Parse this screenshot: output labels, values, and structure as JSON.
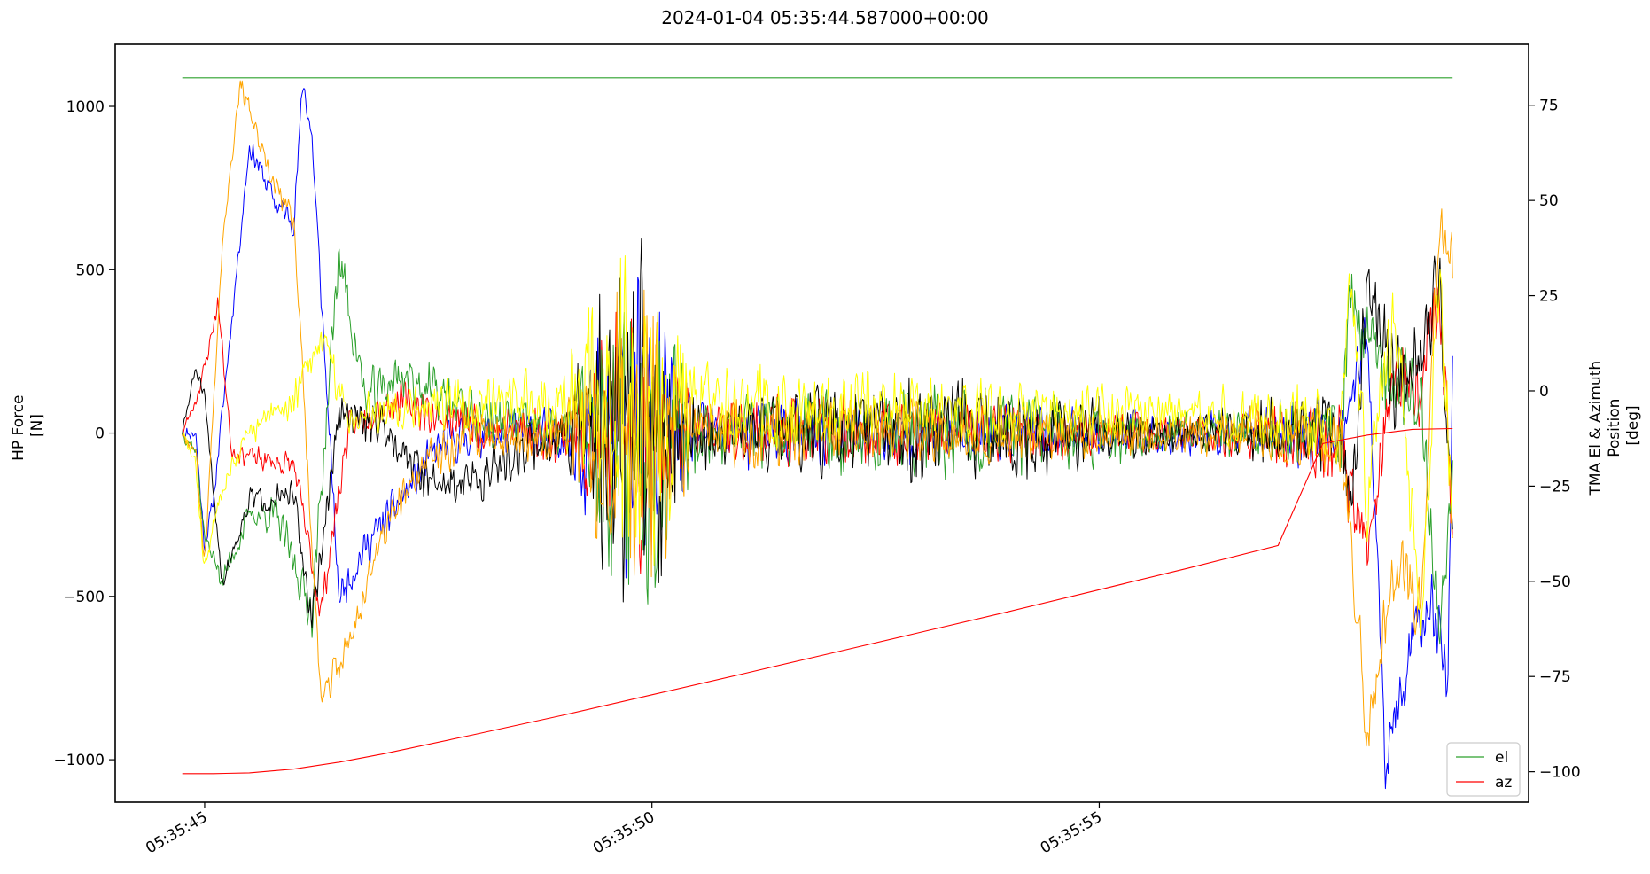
{
  "chart_data": {
    "type": "line",
    "title": "2024-01-04 05:35:44.587000+00:00",
    "left_axis": {
      "label_lines": [
        "HP Force",
        "[N]"
      ],
      "ylim": [
        -1130,
        1190
      ],
      "ticks": [
        -1000,
        -500,
        0,
        500,
        1000
      ],
      "tick_labels": [
        "−1000",
        "−500",
        "0",
        "500",
        "1000"
      ]
    },
    "right_axis": {
      "label_lines": [
        "TMA El & Azimuth",
        "Position",
        "[deg]"
      ],
      "ylim": [
        -108,
        91
      ],
      "ticks": [
        -100,
        -75,
        -50,
        -25,
        0,
        25,
        50,
        75
      ],
      "tick_labels": [
        "−100",
        "−75",
        "−50",
        "−25",
        "0",
        "25",
        "50",
        "75"
      ]
    },
    "x_axis": {
      "unit": "seconds after 05:35:44",
      "xlim": [
        0.0,
        15.8
      ],
      "ticks": [
        1.0,
        6.0,
        11.0
      ],
      "tick_labels": [
        "05:35:45",
        "05:35:50",
        "05:35:55"
      ]
    },
    "position_series": [
      {
        "name": "el",
        "color": "#2ca02c",
        "axis": "right",
        "x": [
          0.75,
          14.95
        ],
        "values": [
          82.2,
          82.2
        ]
      },
      {
        "name": "az",
        "color": "#ff0000",
        "axis": "right",
        "x": [
          0.75,
          1.1,
          1.5,
          2.0,
          2.5,
          3.0,
          4.0,
          5.0,
          6.0,
          7.0,
          8.0,
          9.0,
          10.0,
          11.0,
          12.0,
          13.0,
          13.5,
          14.0,
          14.5,
          14.95
        ],
        "values": [
          -100.5,
          -100.5,
          -100.3,
          -99.3,
          -97.5,
          -95.3,
          -90.3,
          -85.2,
          -79.8,
          -74.4,
          -68.9,
          -63.4,
          -57.9,
          -52.2,
          -46.5,
          -40.6,
          -13.8,
          -11.6,
          -10.1,
          -9.9
        ]
      }
    ],
    "force_series": [
      {
        "color": "#0000ff",
        "seed": 11,
        "env_x": [
          0.75,
          0.9,
          1.0,
          1.1,
          1.5,
          1.8,
          2.0,
          2.1,
          2.2,
          2.5,
          2.8,
          3.2,
          3.6,
          4.0,
          5.0,
          6.0,
          7.0,
          8.0,
          9.0,
          10.0,
          11.0,
          12.0,
          13.0,
          13.7,
          14.0,
          14.2,
          14.5,
          14.7,
          14.9,
          14.95
        ],
        "env_y": [
          0,
          0,
          -350,
          -200,
          880,
          700,
          650,
          1080,
          900,
          -500,
          -350,
          -200,
          -50,
          0,
          0,
          0,
          0,
          0,
          0,
          0,
          0,
          0,
          0,
          0,
          300,
          -1020,
          -650,
          -500,
          -750,
          250
        ],
        "noise_x": [
          0.75,
          2.5,
          5.0,
          5.5,
          6.0,
          6.5,
          7.0,
          12.0,
          13.7,
          14.95
        ],
        "noise_a": [
          15,
          40,
          60,
          280,
          320,
          60,
          80,
          45,
          80,
          80
        ]
      },
      {
        "color": "#ff0000",
        "seed": 23,
        "env_x": [
          0.75,
          0.9,
          1.0,
          1.15,
          1.3,
          1.6,
          2.0,
          2.3,
          2.6,
          2.9,
          3.2,
          3.6,
          4.0,
          5.0,
          6.0,
          7.0,
          8.0,
          9.0,
          10.0,
          11.0,
          12.0,
          13.0,
          13.7,
          14.0,
          14.3,
          14.6,
          14.8,
          14.95
        ],
        "env_y": [
          0,
          100,
          200,
          400,
          -50,
          -80,
          -100,
          -550,
          0,
          80,
          100,
          50,
          20,
          0,
          0,
          0,
          0,
          0,
          0,
          0,
          0,
          0,
          -50,
          -380,
          200,
          150,
          480,
          -300
        ],
        "noise_x": [
          0.75,
          2.5,
          5.0,
          5.5,
          6.0,
          6.5,
          7.0,
          12.0,
          13.7,
          14.95
        ],
        "noise_a": [
          15,
          40,
          60,
          250,
          320,
          70,
          85,
          45,
          90,
          90
        ]
      },
      {
        "color": "#2ca02c",
        "seed": 37,
        "env_x": [
          0.75,
          0.9,
          1.0,
          1.2,
          1.5,
          1.8,
          2.2,
          2.5,
          2.8,
          3.2,
          3.6,
          4.0,
          5.0,
          6.0,
          7.0,
          8.0,
          9.0,
          10.0,
          11.0,
          12.0,
          13.0,
          13.7,
          13.8,
          14.0,
          14.3,
          14.6,
          14.8,
          14.95
        ],
        "env_y": [
          0,
          -50,
          -320,
          -450,
          -250,
          -250,
          -550,
          550,
          100,
          180,
          120,
          50,
          0,
          0,
          0,
          0,
          0,
          0,
          0,
          0,
          0,
          0,
          420,
          300,
          150,
          100,
          -620,
          -80
        ],
        "noise_x": [
          0.75,
          2.5,
          5.0,
          5.5,
          6.0,
          6.5,
          7.0,
          9.4,
          12.0,
          13.7,
          14.95
        ],
        "noise_a": [
          15,
          60,
          60,
          300,
          380,
          70,
          80,
          110,
          45,
          90,
          90
        ]
      },
      {
        "color": "#000000",
        "seed": 51,
        "env_x": [
          0.75,
          0.9,
          1.0,
          1.2,
          1.5,
          2.0,
          2.2,
          2.5,
          3.0,
          3.5,
          4.0,
          4.5,
          5.0,
          6.0,
          7.0,
          8.0,
          9.0,
          10.0,
          11.0,
          12.0,
          13.0,
          13.7,
          13.8,
          14.0,
          14.3,
          14.6,
          14.8,
          14.95
        ],
        "env_y": [
          0,
          200,
          100,
          -460,
          -200,
          -200,
          -580,
          50,
          30,
          -150,
          -150,
          -60,
          0,
          0,
          0,
          0,
          0,
          0,
          0,
          0,
          0,
          0,
          -250,
          450,
          150,
          250,
          450,
          -280
        ],
        "noise_x": [
          0.75,
          2.5,
          5.0,
          5.5,
          6.0,
          6.5,
          7.0,
          9.4,
          12.0,
          13.7,
          14.95
        ],
        "noise_a": [
          15,
          45,
          60,
          330,
          440,
          75,
          85,
          120,
          45,
          95,
          95
        ]
      },
      {
        "color": "#ffa500",
        "seed": 67,
        "env_x": [
          0.75,
          0.9,
          1.0,
          1.2,
          1.4,
          1.7,
          2.0,
          2.3,
          2.6,
          3.0,
          3.5,
          4.0,
          5.0,
          6.0,
          7.0,
          8.0,
          9.0,
          10.0,
          11.0,
          12.0,
          13.0,
          13.7,
          14.0,
          14.3,
          14.6,
          14.8,
          14.95
        ],
        "env_y": [
          0,
          -50,
          -400,
          600,
          1080,
          800,
          650,
          -830,
          -650,
          -300,
          -80,
          0,
          0,
          0,
          0,
          0,
          0,
          0,
          0,
          0,
          0,
          0,
          -900,
          -400,
          -550,
          670,
          500
        ],
        "noise_x": [
          0.75,
          2.5,
          5.0,
          5.5,
          6.0,
          6.5,
          7.0,
          12.0,
          13.7,
          14.95
        ],
        "noise_a": [
          15,
          40,
          60,
          280,
          340,
          70,
          80,
          45,
          80,
          80
        ]
      },
      {
        "color": "#ffff00",
        "seed": 83,
        "env_x": [
          0.75,
          0.9,
          1.0,
          1.2,
          1.5,
          2.0,
          2.3,
          2.6,
          3.0,
          4.0,
          5.0,
          6.0,
          7.0,
          8.0,
          9.0,
          10.0,
          11.0,
          12.0,
          13.0,
          13.7,
          13.8,
          14.0,
          14.3,
          14.6,
          14.8,
          14.95
        ],
        "env_y": [
          0,
          -100,
          -420,
          -150,
          0,
          100,
          300,
          50,
          80,
          100,
          90,
          80,
          80,
          70,
          60,
          60,
          60,
          50,
          50,
          30,
          500,
          -200,
          400,
          -600,
          500,
          -300
        ],
        "noise_x": [
          0.75,
          2.5,
          5.0,
          5.5,
          6.0,
          6.5,
          7.0,
          12.0,
          13.7,
          14.95
        ],
        "noise_a": [
          15,
          50,
          75,
          300,
          360,
          90,
          100,
          55,
          100,
          100
        ]
      }
    ],
    "legend": {
      "placement": "lower-right",
      "entries": [
        "el",
        "az"
      ]
    }
  }
}
